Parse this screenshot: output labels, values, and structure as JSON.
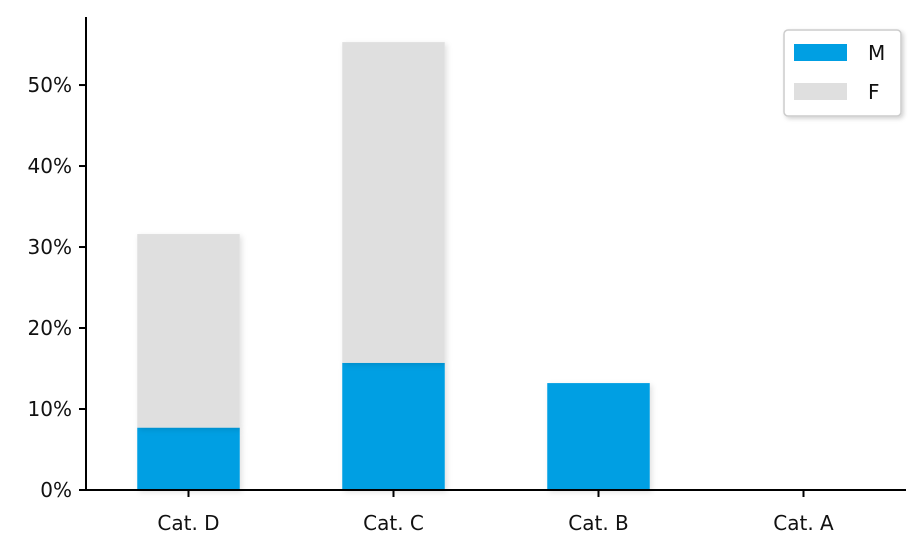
{
  "chart_data": {
    "type": "bar",
    "stacked": true,
    "categories": [
      "Cat. D",
      "Cat. C",
      "Cat. B",
      "Cat. A"
    ],
    "series": [
      {
        "name": "M",
        "values": [
          7.7,
          15.7,
          13.2,
          0
        ],
        "color": "#009fe3"
      },
      {
        "name": "F",
        "values": [
          23.9,
          39.6,
          0,
          0
        ],
        "color": "#dfdfdf"
      }
    ],
    "ylim": [
      0,
      58.4
    ],
    "yticks": [
      0,
      10,
      20,
      30,
      40,
      50
    ],
    "ytick_labels": [
      "0%",
      "10%",
      "20%",
      "30%",
      "40%",
      "50%"
    ],
    "legend_position": "top-right",
    "grid": false,
    "xlabel": "",
    "ylabel": "",
    "title": ""
  }
}
